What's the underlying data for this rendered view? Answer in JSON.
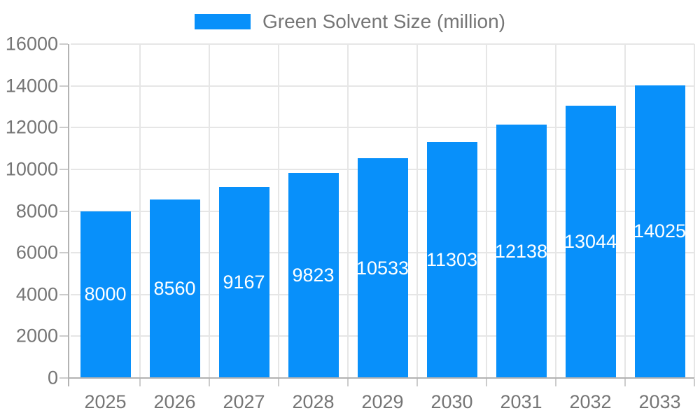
{
  "legend": {
    "label": "Green Solvent Size (million)"
  },
  "colors": {
    "bar": "#0890fa",
    "bar_label": "#ffffff",
    "axis_text": "#757575",
    "gridline": "#e6e6e6",
    "axis_line": "#b3b3b3",
    "tick": "#cccccc",
    "background": "#ffffff"
  },
  "chart_data": {
    "type": "bar",
    "title": "Green Solvent Size (million)",
    "categories": [
      "2025",
      "2026",
      "2027",
      "2028",
      "2029",
      "2030",
      "2031",
      "2032",
      "2033"
    ],
    "series": [
      {
        "name": "Green Solvent Size (million)",
        "values": [
          8000,
          8560,
          9167,
          9823,
          10533,
          11303,
          12138,
          13044,
          14025
        ]
      }
    ],
    "bar_labels": [
      "8000",
      "8560",
      "9167",
      "9823",
      "10533",
      "11303",
      "12138",
      "13044",
      "14025"
    ],
    "xlabel": "",
    "ylabel": "",
    "ylim": [
      0,
      16000
    ],
    "ytick_step": 2000,
    "ytick_labels": [
      "0",
      "2000",
      "4000",
      "6000",
      "8000",
      "10000",
      "12000",
      "14000",
      "16000"
    ],
    "grid": true,
    "legend_position": "top",
    "bar_label_position": "center-inside"
  }
}
